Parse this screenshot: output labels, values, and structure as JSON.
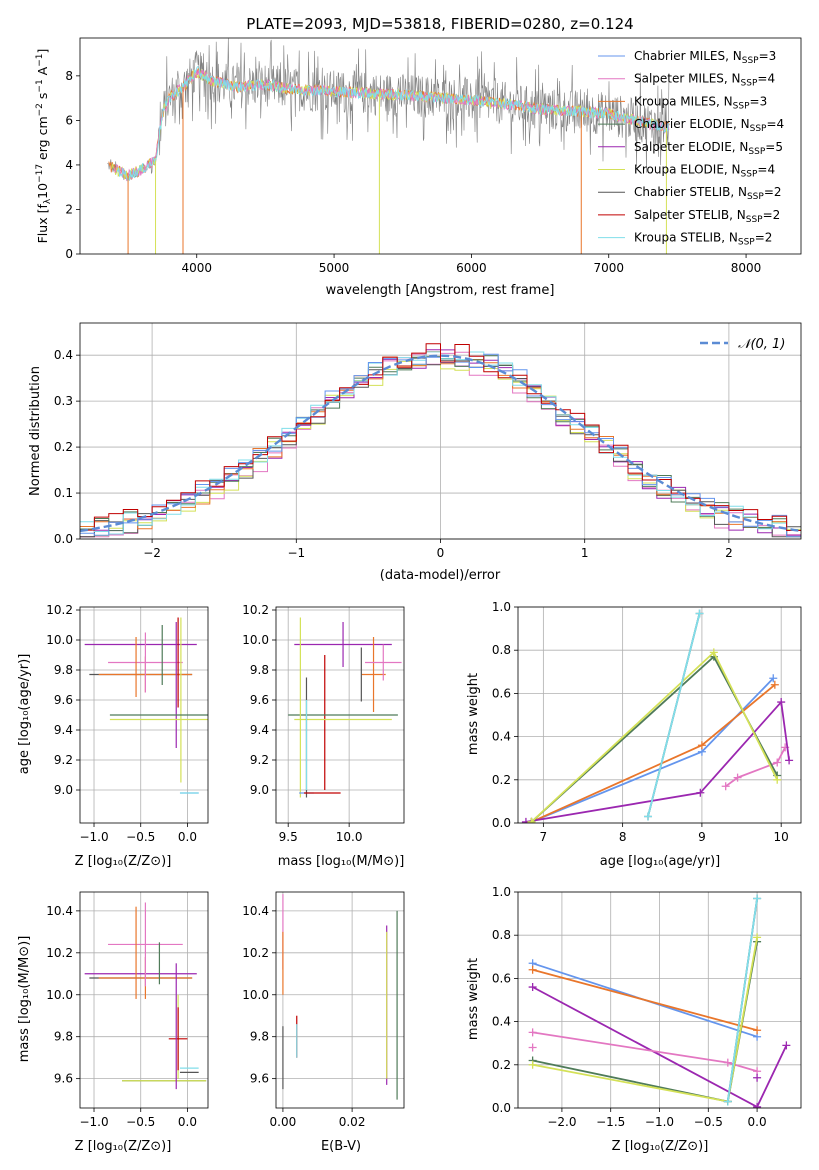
{
  "colors": {
    "Chabrier MILES": "#6495ed",
    "Salpeter MILES": "#e377c2",
    "Kroupa MILES": "#e9762b",
    "Chabrier ELODIE": "#4f7b59",
    "Salpeter ELODIE": "#9b27b0",
    "Kroupa ELODIE": "#d4e157",
    "Chabrier STELIB": "#555555",
    "Salpeter STELIB": "#c00000",
    "Kroupa STELIB": "#80deea",
    "gauss": "#5b8bd4",
    "grey_spectrum": "#808080"
  },
  "chart_data": [
    {
      "id": "spectrum",
      "type": "line",
      "title": "PLATE=2093, MJD=53818, FIBERID=0280, z=0.124",
      "xlabel": "wavelength [Angstrom, rest frame]",
      "ylabel": "Flux [fλ 10⁻¹⁷ erg cm⁻² s⁻¹ A⁻¹]",
      "xlim": [
        3150,
        8400
      ],
      "ylim": [
        0,
        9.7
      ],
      "xticks": [
        4000,
        5000,
        6000,
        7000,
        8000
      ],
      "yticks": [
        0,
        2,
        4,
        6,
        8
      ],
      "grid": false,
      "legend_position": "top-right",
      "legend": [
        {
          "label": "Chabrier MILES, NSSP=3",
          "text": "Chabrier MILES, N",
          "sub": "SSP",
          "tail": "=3",
          "color_key": "Chabrier MILES"
        },
        {
          "label": "Salpeter MILES, NSSP=4",
          "text": "Salpeter MILES, N",
          "sub": "SSP",
          "tail": "=4",
          "color_key": "Salpeter MILES"
        },
        {
          "label": "Kroupa MILES, NSSP=3",
          "text": "Kroupa MILES, N",
          "sub": "SSP",
          "tail": "=3",
          "color_key": "Kroupa MILES"
        },
        {
          "label": "Chabrier ELODIE, NSSP=4",
          "text": "Chabrier ELODIE, N",
          "sub": "SSP",
          "tail": "=4",
          "color_key": "Chabrier ELODIE"
        },
        {
          "label": "Salpeter ELODIE, NSSP=5",
          "text": "Salpeter ELODIE, N",
          "sub": "SSP",
          "tail": "=5",
          "color_key": "Salpeter ELODIE"
        },
        {
          "label": "Kroupa ELODIE, NSSP=4",
          "text": "Kroupa ELODIE, N",
          "sub": "SSP",
          "tail": "=4",
          "color_key": "Kroupa ELODIE"
        },
        {
          "label": "Chabrier STELIB, NSSP=2",
          "text": "Chabrier STELIB, N",
          "sub": "SSP",
          "tail": "=2",
          "color_key": "Chabrier STELIB"
        },
        {
          "label": "Salpeter STELIB, NSSP=2",
          "text": "Salpeter STELIB, N",
          "sub": "SSP",
          "tail": "=2",
          "color_key": "Salpeter STELIB"
        },
        {
          "label": "Kroupa STELIB, NSSP=2",
          "text": "Kroupa STELIB, N",
          "sub": "SSP",
          "tail": "=2",
          "color_key": "Kroupa STELIB"
        }
      ],
      "spectrum_anchor_points": [
        [
          3350,
          4.0
        ],
        [
          3500,
          3.5
        ],
        [
          3600,
          3.8
        ],
        [
          3700,
          4.2
        ],
        [
          3750,
          6.3
        ],
        [
          3800,
          7.0
        ],
        [
          3900,
          7.5
        ],
        [
          4000,
          8.2
        ],
        [
          4100,
          7.8
        ],
        [
          4300,
          7.5
        ],
        [
          4500,
          7.6
        ],
        [
          4700,
          7.4
        ],
        [
          5000,
          7.3
        ],
        [
          5300,
          7.2
        ],
        [
          5600,
          7.1
        ],
        [
          6000,
          6.9
        ],
        [
          6200,
          6.8
        ],
        [
          6500,
          6.5
        ],
        [
          6800,
          6.4
        ],
        [
          7000,
          6.3
        ],
        [
          7200,
          6.0
        ],
        [
          7400,
          5.7
        ]
      ],
      "spectrum_drops": [
        3500,
        3700,
        3900,
        5330,
        6800,
        7420
      ]
    },
    {
      "id": "residuals",
      "type": "line",
      "xlabel": "(data-model)/error",
      "ylabel": "Normed distribution",
      "xlim": [
        -2.5,
        2.5
      ],
      "ylim": [
        0,
        0.47
      ],
      "xticks": [
        -2,
        -1,
        0,
        1,
        2
      ],
      "xtick_labels": [
        "−2",
        "−1",
        "0",
        "1",
        "2"
      ],
      "yticks": [
        0.0,
        0.1,
        0.2,
        0.3,
        0.4
      ],
      "ytick_labels": [
        "0.0",
        "0.1",
        "0.2",
        "0.3",
        "0.4"
      ],
      "grid": true,
      "legend_position": "top-right",
      "legend_label": "𝒩(0, 1)",
      "gauss_series": "normal distribution, mean 0, sigma 1",
      "hist_bin_width": 0.1
    },
    {
      "id": "age-vs-Z",
      "type": "scatter",
      "xlabel": "Z [log₁₀(Z/Z⊙)]",
      "ylabel": "age  [log₁₀(age/yr)]",
      "xlim": [
        -1.15,
        0.22
      ],
      "ylim": [
        8.78,
        10.22
      ],
      "xticks": [
        -1.0,
        -0.5,
        0.0
      ],
      "xtick_labels": [
        "−1.0",
        "−0.5",
        "0.0"
      ],
      "yticks": [
        9.0,
        9.2,
        9.4,
        9.6,
        9.8,
        10.0,
        10.2
      ],
      "ytick_labels": [
        "9.0",
        "9.2",
        "9.4",
        "9.6",
        "9.8",
        "10.0",
        "10.2"
      ],
      "grid": true,
      "crosses": [
        {
          "color_key": "Salpeter ELODIE",
          "x": -0.5,
          "xerr": 0.6,
          "y": 9.97,
          "yerr": 0.0
        },
        {
          "color_key": "Chabrier STELIB",
          "x": -0.5,
          "xerr": 0.55,
          "y": 9.77,
          "yerr": 0.0
        },
        {
          "color_key": "Kroupa MILES",
          "x": -0.45,
          "xerr": 0.5,
          "y": 9.77,
          "yerr": 0.12
        },
        {
          "color_key": "Salpeter MILES",
          "x": -0.45,
          "xerr": 0.4,
          "y": 9.85,
          "yerr": 0.2
        },
        {
          "color_key": "Kroupa MILES",
          "x": -0.55,
          "xerr": 0.0,
          "y": 9.82,
          "yerr": 0.2
        },
        {
          "color_key": "Chabrier ELODIE",
          "x": -0.27,
          "xerr": 0.0,
          "y": 9.9,
          "yerr": 0.2
        },
        {
          "color_key": "Salpeter STELIB",
          "x": -0.1,
          "xerr": 0.0,
          "y": 9.85,
          "yerr": 0.3
        },
        {
          "color_key": "Salpeter ELODIE",
          "x": -0.12,
          "xerr": 0.0,
          "y": 9.7,
          "yerr": 0.42
        },
        {
          "color_key": "Kroupa ELODIE",
          "x": -0.07,
          "xerr": 0.0,
          "y": 9.6,
          "yerr": 0.55
        },
        {
          "color_key": "Chabrier ELODIE",
          "x": -0.28,
          "xerr": 0.55,
          "y": 9.5,
          "yerr": 0.0
        },
        {
          "color_key": "Kroupa ELODIE",
          "x": -0.28,
          "xerr": 0.55,
          "y": 9.47,
          "yerr": 0.0
        },
        {
          "color_key": "Chabrier MILES",
          "x": 0.02,
          "xerr": 0.1,
          "y": 8.98,
          "yerr": 0.0
        },
        {
          "color_key": "Kroupa STELIB",
          "x": 0.02,
          "xerr": 0.1,
          "y": 8.98,
          "yerr": 0.0
        }
      ]
    },
    {
      "id": "age-vs-mass",
      "type": "scatter",
      "xlabel": "mass [log₁₀(M/M⊙)]",
      "xlim": [
        9.4,
        10.45
      ],
      "ylim": [
        8.78,
        10.22
      ],
      "xticks": [
        9.5,
        10.0
      ],
      "xtick_labels": [
        "9.5",
        "10.0"
      ],
      "yticks": [
        9.0,
        9.2,
        9.4,
        9.6,
        9.8,
        10.0,
        10.2
      ],
      "ytick_labels": [
        "9.0",
        "9.2",
        "9.4",
        "9.6",
        "9.8",
        "10.0",
        "10.2"
      ],
      "grid": true,
      "crosses": [
        {
          "color_key": "Salpeter ELODIE",
          "x": 9.95,
          "xerr": 0.4,
          "y": 9.97,
          "yerr": 0.15
        },
        {
          "color_key": "Kroupa MILES",
          "x": 10.2,
          "xerr": 0.1,
          "y": 9.77,
          "yerr": 0.25
        },
        {
          "color_key": "Salpeter MILES",
          "x": 10.28,
          "xerr": 0.15,
          "y": 9.85,
          "yerr": 0.12
        },
        {
          "color_key": "Chabrier STELIB",
          "x": 10.1,
          "xerr": 0.0,
          "y": 9.77,
          "yerr": 0.18
        },
        {
          "color_key": "Salpeter STELIB",
          "x": 9.8,
          "xerr": 0.0,
          "y": 9.45,
          "yerr": 0.45
        },
        {
          "color_key": "Chabrier ELODIE",
          "x": 9.95,
          "xerr": 0.45,
          "y": 9.5,
          "yerr": 0.0
        },
        {
          "color_key": "Kroupa ELODIE",
          "x": 9.95,
          "xerr": 0.4,
          "y": 9.47,
          "yerr": 0.0
        },
        {
          "color_key": "Kroupa ELODIE",
          "x": 9.6,
          "xerr": 0.0,
          "y": 9.55,
          "yerr": 0.6
        },
        {
          "color_key": "Chabrier MILES",
          "x": 9.65,
          "xerr": 0.06,
          "y": 8.98,
          "yerr": 0.0
        },
        {
          "color_key": "Chabrier STELIB",
          "x": 9.65,
          "xerr": 0.0,
          "y": 9.35,
          "yerr": 0.4
        },
        {
          "color_key": "Kroupa STELIB",
          "x": 9.65,
          "xerr": 0.0,
          "y": 9.3,
          "yerr": 0.3
        },
        {
          "color_key": "Salpeter STELIB",
          "x": 9.78,
          "xerr": 0.15,
          "y": 8.98,
          "yerr": 0.0
        }
      ]
    },
    {
      "id": "massweight-vs-age",
      "type": "line",
      "xlabel": "age  [log₁₀(age/yr)]",
      "ylabel": "mass weight",
      "xlim": [
        6.68,
        10.25
      ],
      "ylim": [
        0,
        1
      ],
      "xticks": [
        7,
        8,
        9,
        10
      ],
      "xtick_labels": [
        "7",
        "8",
        "9",
        "10"
      ],
      "yticks": [
        0,
        0.2,
        0.4,
        0.6,
        0.8,
        1.0
      ],
      "ytick_labels": [
        "0.0",
        "0.2",
        "0.4",
        "0.6",
        "0.8",
        "1.0"
      ],
      "grid": true,
      "series": [
        {
          "color_key": "Salpeter MILES",
          "x": [
            9.3,
            9.45,
            9.95,
            10.05
          ],
          "y": [
            0.17,
            0.21,
            0.28,
            0.35
          ]
        },
        {
          "color_key": "Chabrier MILES",
          "x": [
            6.85,
            9.0,
            9.9
          ],
          "y": [
            0.005,
            0.33,
            0.67
          ]
        },
        {
          "color_key": "Kroupa MILES",
          "x": [
            6.85,
            9.0,
            9.92
          ],
          "y": [
            0.005,
            0.36,
            0.64
          ]
        },
        {
          "color_key": "Salpeter ELODIE",
          "x": [
            6.78,
            8.98,
            10.0,
            10.1
          ],
          "y": [
            0.005,
            0.14,
            0.56,
            0.29
          ]
        },
        {
          "color_key": "Chabrier ELODIE",
          "x": [
            6.85,
            9.15,
            9.95
          ],
          "y": [
            0.005,
            0.77,
            0.22
          ]
        },
        {
          "color_key": "Kroupa ELODIE",
          "x": [
            6.85,
            9.15,
            9.95
          ],
          "y": [
            0.005,
            0.79,
            0.2
          ]
        },
        {
          "color_key": "Chabrier STELIB",
          "x": [
            8.32,
            8.97
          ],
          "y": [
            0.03,
            0.97
          ]
        },
        {
          "color_key": "Kroupa STELIB",
          "x": [
            8.32,
            8.97
          ],
          "y": [
            0.03,
            0.97
          ]
        }
      ]
    },
    {
      "id": "mass-vs-Z",
      "type": "scatter",
      "xlabel": "Z [log₁₀(Z/Z⊙)]",
      "ylabel": "mass [log₁₀(M/M⊙)]",
      "xlim": [
        -1.15,
        0.22
      ],
      "ylim": [
        9.46,
        10.49
      ],
      "xticks": [
        -1.0,
        -0.5,
        0.0
      ],
      "xtick_labels": [
        "−1.0",
        "−0.5",
        "0.0"
      ],
      "yticks": [
        9.6,
        9.8,
        10.0,
        10.2,
        10.4
      ],
      "ytick_labels": [
        "9.6",
        "9.8",
        "10.0",
        "10.2",
        "10.4"
      ],
      "grid": true,
      "crosses": [
        {
          "color_key": "Salpeter ELODIE",
          "x": -0.5,
          "xerr": 0.6,
          "y": 10.1,
          "yerr": 0.0
        },
        {
          "color_key": "Chabrier STELIB",
          "x": -0.5,
          "xerr": 0.55,
          "y": 10.08,
          "yerr": 0.0
        },
        {
          "color_key": "Kroupa MILES",
          "x": -0.45,
          "xerr": 0.5,
          "y": 10.08,
          "yerr": 0.1
        },
        {
          "color_key": "Salpeter MILES",
          "x": -0.45,
          "xerr": 0.4,
          "y": 10.24,
          "yerr": 0.2
        },
        {
          "color_key": "Kroupa MILES",
          "x": -0.55,
          "xerr": 0.0,
          "y": 10.2,
          "yerr": 0.22
        },
        {
          "color_key": "Chabrier ELODIE",
          "x": -0.3,
          "xerr": 0.0,
          "y": 10.15,
          "yerr": 0.1
        },
        {
          "color_key": "Kroupa ELODIE",
          "x": -0.1,
          "xerr": 0.0,
          "y": 9.8,
          "yerr": 0.2
        },
        {
          "color_key": "Salpeter STELIB",
          "x": -0.1,
          "xerr": 0.1,
          "y": 9.79,
          "yerr": 0.15
        },
        {
          "color_key": "Chabrier ELODIE",
          "x": -0.25,
          "xerr": 0.45,
          "y": 9.59,
          "yerr": 0.0
        },
        {
          "color_key": "Kroupa ELODIE",
          "x": -0.25,
          "xerr": 0.45,
          "y": 9.59,
          "yerr": 0.0
        },
        {
          "color_key": "Kroupa STELIB",
          "x": 0.02,
          "xerr": 0.1,
          "y": 9.65,
          "yerr": 0.0
        },
        {
          "color_key": "Chabrier STELIB",
          "x": 0.02,
          "xerr": 0.1,
          "y": 9.63,
          "yerr": 0.0
        },
        {
          "color_key": "Salpeter ELODIE",
          "x": -0.12,
          "xerr": 0.0,
          "y": 9.85,
          "yerr": 0.3
        }
      ]
    },
    {
      "id": "mass-vs-EBV",
      "type": "scatter",
      "xlabel": "E(B-V)",
      "xlim": [
        -0.002,
        0.035
      ],
      "ylim": [
        9.46,
        10.49
      ],
      "xticks": [
        0.0,
        0.02
      ],
      "xtick_labels": [
        "0.00",
        "0.02"
      ],
      "yticks": [
        9.6,
        9.8,
        10.0,
        10.2,
        10.4
      ],
      "ytick_labels": [
        "9.6",
        "9.8",
        "10.0",
        "10.2",
        "10.4"
      ],
      "grid": true,
      "crosses": [
        {
          "color_key": "Salpeter MILES",
          "x": 0.0,
          "xerr": 0.0,
          "y": 10.3,
          "yerr": 0.18
        },
        {
          "color_key": "Kroupa MILES",
          "x": 0.0,
          "xerr": 0.0,
          "y": 10.15,
          "yerr": 0.15
        },
        {
          "color_key": "Chabrier STELIB",
          "x": 0.0,
          "xerr": 0.0,
          "y": 9.7,
          "yerr": 0.15
        },
        {
          "color_key": "Salpeter STELIB",
          "x": 0.004,
          "xerr": 0.0,
          "y": 9.8,
          "yerr": 0.1
        },
        {
          "color_key": "Kroupa STELIB",
          "x": 0.004,
          "xerr": 0.0,
          "y": 9.78,
          "yerr": 0.08
        },
        {
          "color_key": "Salpeter ELODIE",
          "x": 0.03,
          "xerr": 0.0,
          "y": 9.95,
          "yerr": 0.38
        },
        {
          "color_key": "Kroupa ELODIE",
          "x": 0.03,
          "xerr": 0.0,
          "y": 9.95,
          "yerr": 0.35
        },
        {
          "color_key": "Chabrier ELODIE",
          "x": 0.033,
          "xerr": 0.0,
          "y": 9.95,
          "yerr": 0.45
        }
      ]
    },
    {
      "id": "massweight-vs-Z",
      "type": "line",
      "xlabel": "Z [log₁₀(Z/Z⊙)]",
      "ylabel": "mass weight",
      "xlim": [
        -2.45,
        0.45
      ],
      "ylim": [
        0,
        1
      ],
      "xticks": [
        -2.0,
        -1.5,
        -1.0,
        -0.5,
        0.0
      ],
      "xtick_labels": [
        "−2.0",
        "−1.5",
        "−1.0",
        "−0.5",
        "0.0"
      ],
      "yticks": [
        0,
        0.2,
        0.4,
        0.6,
        0.8,
        1.0
      ],
      "ytick_labels": [
        "0.0",
        "0.2",
        "0.4",
        "0.6",
        "0.8",
        "1.0"
      ],
      "grid": true,
      "series": [
        {
          "color_key": "Chabrier MILES",
          "x": [
            -2.3,
            0.0
          ],
          "y": [
            0.67,
            0.33
          ]
        },
        {
          "color_key": "Kroupa MILES",
          "x": [
            -2.3,
            0.0
          ],
          "y": [
            0.64,
            0.36
          ]
        },
        {
          "color_key": "Salpeter ELODIE",
          "x": [
            -2.3,
            0.0,
            0.3
          ],
          "y": [
            0.56,
            0.005,
            0.29
          ]
        },
        {
          "color_key": "Salpeter MILES",
          "x": [
            -2.3,
            -0.3,
            0.0
          ],
          "y": [
            0.35,
            0.21,
            0.17
          ]
        },
        {
          "color_key": "Salpeter MILES",
          "x": [
            -2.3
          ],
          "y": [
            0.28
          ]
        },
        {
          "color_key": "Chabrier ELODIE",
          "x": [
            -2.3,
            -0.3,
            0.0
          ],
          "y": [
            0.22,
            0.03,
            0.77
          ]
        },
        {
          "color_key": "Kroupa ELODIE",
          "x": [
            -2.3,
            -0.3,
            0.0
          ],
          "y": [
            0.2,
            0.03,
            0.79
          ]
        },
        {
          "color_key": "Chabrier STELIB",
          "x": [
            -0.3,
            0.0
          ],
          "y": [
            0.03,
            0.97
          ]
        },
        {
          "color_key": "Kroupa STELIB",
          "x": [
            -0.3,
            0.0
          ],
          "y": [
            0.03,
            0.97
          ]
        },
        {
          "color_key": "Salpeter ELODIE",
          "x": [
            0.0
          ],
          "y": [
            0.14
          ]
        }
      ]
    }
  ]
}
